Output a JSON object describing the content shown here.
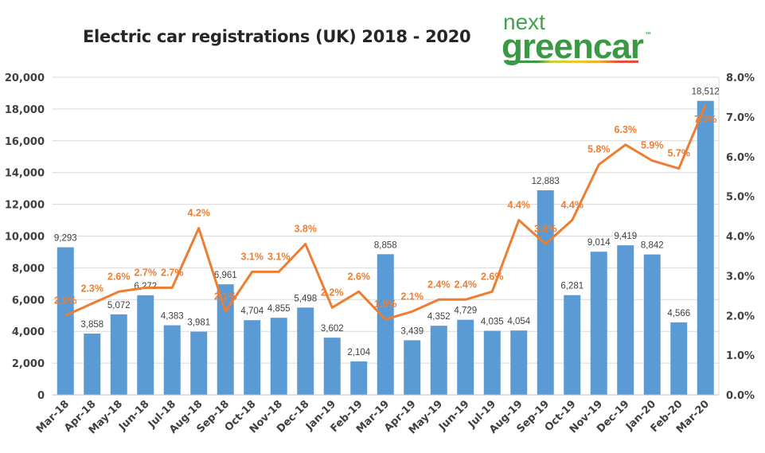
{
  "logo": {
    "line1": "next",
    "line2": "greencar",
    "tm": "™"
  },
  "chart_data": {
    "type": "bar+line",
    "title": "Electric car registrations (UK) 2018 - 2020",
    "categories": [
      "Mar-18",
      "Apr-18",
      "May-18",
      "Jun-18",
      "Jul-18",
      "Aug-18",
      "Sep-18",
      "Oct-18",
      "Nov-18",
      "Dec-18",
      "Jan-19",
      "Feb-19",
      "Mar-19",
      "Apr-19",
      "May-19",
      "Jun-19",
      "Jul-19",
      "Aug-19",
      "Sep-19",
      "Oct-19",
      "Nov-19",
      "Dec-19",
      "Jan-20",
      "Feb-20",
      "Mar-20"
    ],
    "series": [
      {
        "type": "bar",
        "axis": "left",
        "color": "#5b9bd5",
        "values": [
          9293,
          3858,
          5072,
          6272,
          4383,
          3981,
          6961,
          4704,
          4855,
          5498,
          3602,
          2104,
          8858,
          3439,
          4352,
          4729,
          4035,
          4054,
          12883,
          6281,
          9014,
          9419,
          8842,
          4566,
          18512
        ],
        "labels": [
          "9,293",
          "3,858",
          "5,072",
          "6,272",
          "4,383",
          "3,981",
          "6,961",
          "4,704",
          "4,855",
          "5,498",
          "3,602",
          "2,104",
          "8,858",
          "3,439",
          "4,352",
          "4,729",
          "4,035",
          "4,054",
          "12,883",
          "6,281",
          "9,014",
          "9,419",
          "8,842",
          "4,566",
          "18,512"
        ]
      },
      {
        "type": "line",
        "axis": "right",
        "color": "#ed7d31",
        "values": [
          2.0,
          2.3,
          2.6,
          2.7,
          2.7,
          4.2,
          2.1,
          3.1,
          3.1,
          3.8,
          2.2,
          2.6,
          1.9,
          2.1,
          2.4,
          2.4,
          2.6,
          4.4,
          3.8,
          4.4,
          5.8,
          6.3,
          5.9,
          5.7,
          7.3
        ],
        "labels": [
          "2.0%",
          "2.3%",
          "2.6%",
          "2.7%",
          "2.7%",
          "4.2%",
          "2.1%",
          "3.1%",
          "3.1%",
          "3.8%",
          "2.2%",
          "2.6%",
          "1.9%",
          "2.1%",
          "2.4%",
          "2.4%",
          "2.6%",
          "4.4%",
          "3.8%",
          "4.4%",
          "5.8%",
          "6.3%",
          "5.9%",
          "5.7%",
          "7.3%"
        ]
      }
    ],
    "y_left": {
      "range": [
        0,
        20000
      ],
      "ticks": [
        "0",
        "2,000",
        "4,000",
        "6,000",
        "8,000",
        "10,000",
        "12,000",
        "14,000",
        "16,000",
        "18,000",
        "20,000"
      ]
    },
    "y_right": {
      "range": [
        0,
        8
      ],
      "ticks": [
        "0.0%",
        "1.0%",
        "2.0%",
        "3.0%",
        "4.0%",
        "5.0%",
        "6.0%",
        "7.0%",
        "8.0%"
      ]
    },
    "grid": true,
    "legend": "none"
  }
}
